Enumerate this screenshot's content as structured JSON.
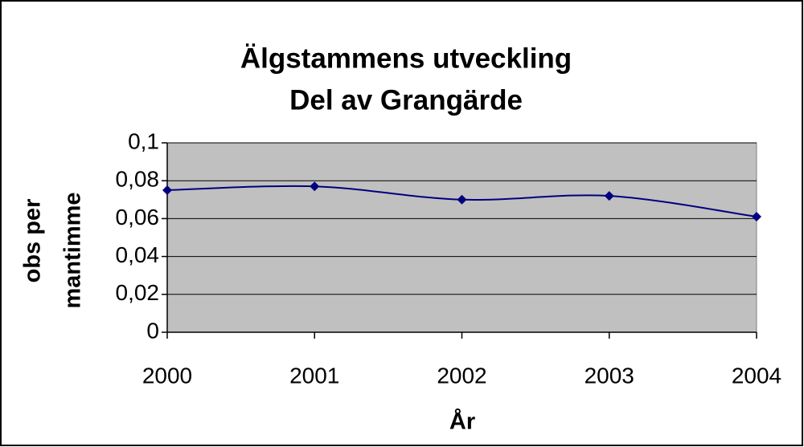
{
  "chart_data": {
    "type": "line",
    "title": [
      "Älgstammens utveckling",
      "Del av Grangärde"
    ],
    "ylabel": [
      "obs per",
      "mantimme"
    ],
    "xlabel": "År",
    "categories": [
      "2000",
      "2001",
      "2002",
      "2003",
      "2004"
    ],
    "series": [
      {
        "name": "obs per mantimme",
        "color": "#000080",
        "values": [
          0.075,
          0.077,
          0.07,
          0.072,
          0.061
        ]
      }
    ],
    "ylim": [
      0,
      0.1
    ],
    "yticks": [
      0,
      {
        "value": 0.02,
        "label": "0,02"
      },
      {
        "value": 0.04,
        "label": "0,04"
      },
      {
        "value": 0.06,
        "label": "0,06"
      },
      {
        "value": 0.08,
        "label": "0,08"
      },
      {
        "value": 0.1,
        "label": "0,1"
      }
    ],
    "grid": true,
    "plot_background": "#c0c0c0",
    "smooth": true
  }
}
